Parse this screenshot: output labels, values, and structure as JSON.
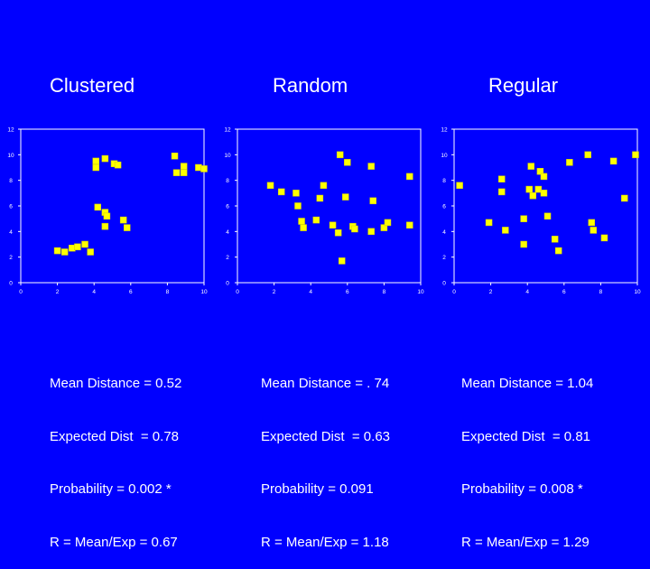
{
  "chart_data": [
    {
      "type": "scatter",
      "title": "Clustered",
      "xlim": [
        0,
        10
      ],
      "ylim": [
        0,
        12
      ],
      "xticks": [
        "0",
        "2",
        "4",
        "6",
        "8",
        "10"
      ],
      "yticks": [
        "0",
        "2",
        "4",
        "6",
        "8",
        "10",
        "12"
      ],
      "points": [
        {
          "x": 2.0,
          "y": 2.5
        },
        {
          "x": 2.4,
          "y": 2.4
        },
        {
          "x": 2.8,
          "y": 2.7
        },
        {
          "x": 3.1,
          "y": 2.8
        },
        {
          "x": 3.5,
          "y": 3.0
        },
        {
          "x": 3.8,
          "y": 2.4
        },
        {
          "x": 4.1,
          "y": 9.5
        },
        {
          "x": 4.1,
          "y": 9.0
        },
        {
          "x": 4.6,
          "y": 9.7
        },
        {
          "x": 5.1,
          "y": 9.3
        },
        {
          "x": 5.3,
          "y": 9.2
        },
        {
          "x": 4.2,
          "y": 5.9
        },
        {
          "x": 4.6,
          "y": 5.5
        },
        {
          "x": 4.7,
          "y": 5.2
        },
        {
          "x": 4.6,
          "y": 4.4
        },
        {
          "x": 5.6,
          "y": 4.9
        },
        {
          "x": 5.8,
          "y": 4.3
        },
        {
          "x": 8.4,
          "y": 9.9
        },
        {
          "x": 8.5,
          "y": 8.6
        },
        {
          "x": 8.9,
          "y": 9.1
        },
        {
          "x": 8.9,
          "y": 8.6
        },
        {
          "x": 9.7,
          "y": 9.0
        },
        {
          "x": 10.0,
          "y": 8.9
        }
      ],
      "stats": [
        "Mean Distance = 0.52",
        "Expected Dist  = 0.78",
        "Probability = 0.002 *",
        "R = Mean/Exp = 0.67"
      ]
    },
    {
      "type": "scatter",
      "title": "Random",
      "xlim": [
        0,
        10
      ],
      "ylim": [
        0,
        12
      ],
      "xticks": [
        "0",
        "2",
        "4",
        "6",
        "8",
        "10"
      ],
      "yticks": [
        "0",
        "2",
        "4",
        "6",
        "8",
        "10",
        "12"
      ],
      "points": [
        {
          "x": 1.8,
          "y": 7.6
        },
        {
          "x": 2.4,
          "y": 7.1
        },
        {
          "x": 3.2,
          "y": 7.0
        },
        {
          "x": 3.3,
          "y": 6.0
        },
        {
          "x": 3.5,
          "y": 4.8
        },
        {
          "x": 3.6,
          "y": 4.3
        },
        {
          "x": 4.3,
          "y": 4.9
        },
        {
          "x": 4.5,
          "y": 6.6
        },
        {
          "x": 4.7,
          "y": 7.6
        },
        {
          "x": 5.2,
          "y": 4.5
        },
        {
          "x": 5.5,
          "y": 3.9
        },
        {
          "x": 5.6,
          "y": 10.0
        },
        {
          "x": 6.0,
          "y": 9.4
        },
        {
          "x": 5.9,
          "y": 6.7
        },
        {
          "x": 5.7,
          "y": 1.7
        },
        {
          "x": 6.3,
          "y": 4.4
        },
        {
          "x": 6.4,
          "y": 4.2
        },
        {
          "x": 7.3,
          "y": 9.1
        },
        {
          "x": 7.3,
          "y": 4.0
        },
        {
          "x": 7.4,
          "y": 6.4
        },
        {
          "x": 8.0,
          "y": 4.3
        },
        {
          "x": 8.2,
          "y": 4.7
        },
        {
          "x": 9.4,
          "y": 4.5
        },
        {
          "x": 9.4,
          "y": 8.3
        }
      ],
      "stats": [
        "Mean Distance = . 74",
        "Expected Dist  = 0.63",
        "Probability = 0.091",
        "R = Mean/Exp = 1.18"
      ]
    },
    {
      "type": "scatter",
      "title": "Regular",
      "xlim": [
        0,
        10
      ],
      "ylim": [
        0,
        12
      ],
      "xticks": [
        "0",
        "2",
        "4",
        "6",
        "8",
        "10"
      ],
      "yticks": [
        "0",
        "2",
        "4",
        "6",
        "8",
        "10",
        "12"
      ],
      "points": [
        {
          "x": 0.3,
          "y": 7.6
        },
        {
          "x": 1.9,
          "y": 4.7
        },
        {
          "x": 2.6,
          "y": 8.1
        },
        {
          "x": 2.6,
          "y": 7.1
        },
        {
          "x": 2.8,
          "y": 4.1
        },
        {
          "x": 3.8,
          "y": 3.0
        },
        {
          "x": 4.1,
          "y": 7.3
        },
        {
          "x": 4.3,
          "y": 6.8
        },
        {
          "x": 4.2,
          "y": 9.1
        },
        {
          "x": 4.6,
          "y": 7.3
        },
        {
          "x": 4.7,
          "y": 8.7
        },
        {
          "x": 4.9,
          "y": 7.0
        },
        {
          "x": 4.9,
          "y": 8.3
        },
        {
          "x": 5.1,
          "y": 5.2
        },
        {
          "x": 3.8,
          "y": 5.0
        },
        {
          "x": 5.5,
          "y": 3.4
        },
        {
          "x": 5.7,
          "y": 2.5
        },
        {
          "x": 6.3,
          "y": 9.4
        },
        {
          "x": 7.5,
          "y": 4.7
        },
        {
          "x": 7.6,
          "y": 4.1
        },
        {
          "x": 8.2,
          "y": 3.5
        },
        {
          "x": 9.9,
          "y": 10.0
        },
        {
          "x": 8.7,
          "y": 9.5
        },
        {
          "x": 9.3,
          "y": 6.6
        },
        {
          "x": 7.3,
          "y": 10.0
        }
      ],
      "stats": [
        "Mean Distance = 1.04",
        "Expected Dist  = 0.81",
        "Probability = 0.008 *",
        "R = Mean/Exp = 1.29"
      ]
    }
  ],
  "colors": {
    "background": "#0000ff",
    "point": "#ffff00",
    "axis": "#ffffff",
    "text": "#ffffff"
  }
}
